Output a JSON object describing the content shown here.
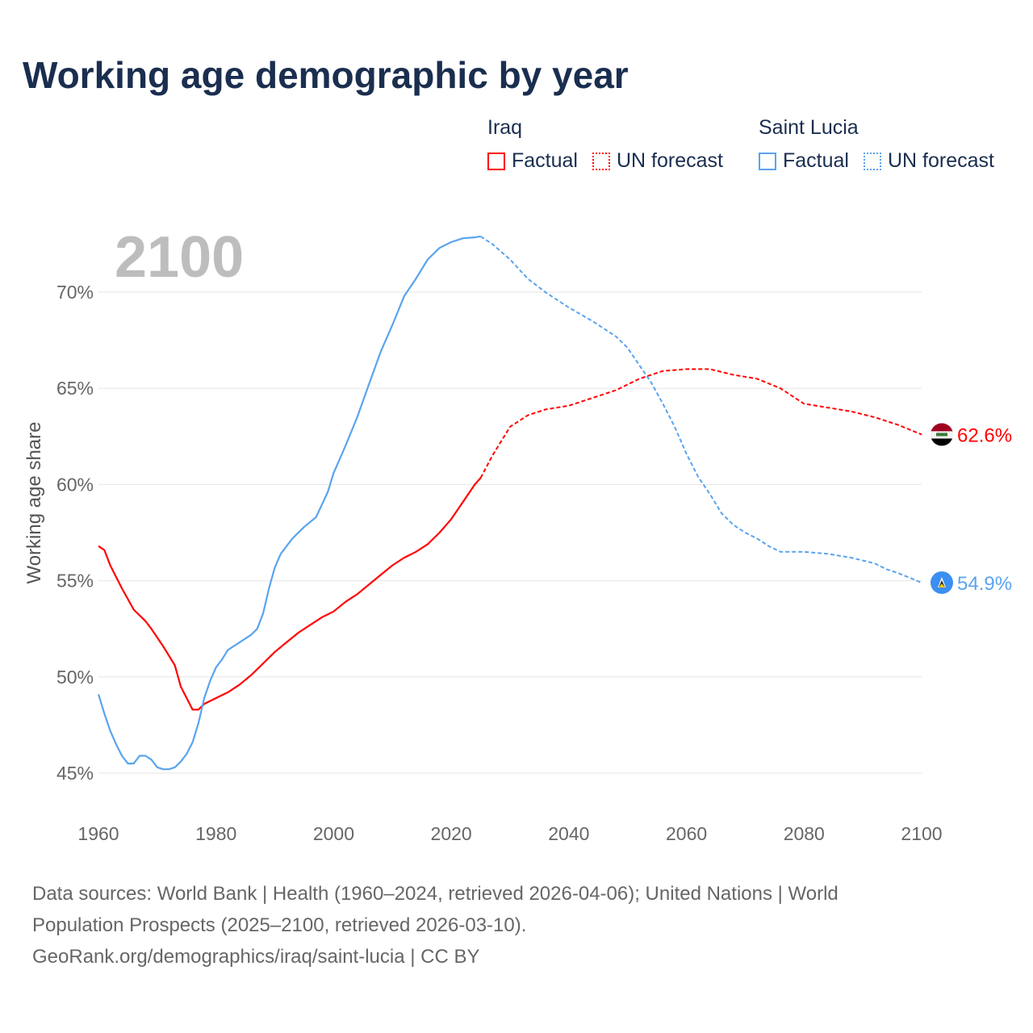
{
  "title": "Working age demographic by year",
  "legend": [
    {
      "country": "Iraq",
      "factual": "Factual",
      "forecast": "UN forecast",
      "color": "#ff0000"
    },
    {
      "country": "Saint Lucia",
      "factual": "Factual",
      "forecast": "UN forecast",
      "color": "#5aa4ee"
    }
  ],
  "year_watermark": "2100",
  "footer": {
    "line1": "Data sources: World Bank | Health (1960–2024, retrieved 2026-04-06); United Nations | World",
    "line2": "Population Prospects (2025–2100, retrieved 2026-03-10).",
    "line3": "GeoRank.org/demographics/iraq/saint-lucia | CC BY"
  },
  "chart_data": {
    "type": "line",
    "title": "Working age demographic by year",
    "xlabel": "",
    "ylabel": "Working age share",
    "xlim": [
      1960,
      2100
    ],
    "ylim": [
      45,
      72.9
    ],
    "xticks": [
      1960,
      1980,
      2000,
      2020,
      2040,
      2060,
      2080,
      2100
    ],
    "yticks": [
      45,
      50,
      55,
      60,
      65,
      70
    ],
    "ytick_labels": [
      "45%",
      "50%",
      "55%",
      "60%",
      "65%",
      "70%"
    ],
    "xtick_labels": [
      "1960",
      "1980",
      "2000",
      "2020",
      "2040",
      "2060",
      "2080",
      "2100"
    ],
    "grid": true,
    "series": [
      {
        "name": "Iraq",
        "color": "#ff0000",
        "end_label": "62.6%",
        "factual": {
          "x": [
            1960,
            1961,
            1962,
            1964,
            1966,
            1968,
            1969,
            1971,
            1973,
            1974,
            1975,
            1976,
            1977,
            1978,
            1980,
            1982,
            1984,
            1986,
            1988,
            1990,
            1992,
            1994,
            1996,
            1998,
            2000,
            2002,
            2004,
            2006,
            2008,
            2010,
            2012,
            2014,
            2016,
            2018,
            2020,
            2022,
            2024,
            2025
          ],
          "y": [
            56.8,
            56.6,
            55.8,
            54.6,
            53.5,
            52.9,
            52.5,
            51.6,
            50.6,
            49.5,
            48.9,
            48.3,
            48.3,
            48.6,
            48.9,
            49.2,
            49.6,
            50.1,
            50.7,
            51.3,
            51.8,
            52.3,
            52.7,
            53.1,
            53.4,
            53.9,
            54.3,
            54.8,
            55.3,
            55.8,
            56.2,
            56.5,
            56.9,
            57.5,
            58.2,
            59.1,
            60.0,
            60.35
          ]
        },
        "forecast": {
          "x": [
            2025,
            2027,
            2030,
            2033,
            2036,
            2040,
            2044,
            2048,
            2052,
            2056,
            2060,
            2064,
            2068,
            2072,
            2076,
            2080,
            2084,
            2088,
            2092,
            2096,
            2100
          ],
          "y": [
            60.35,
            61.5,
            63.0,
            63.6,
            63.9,
            64.1,
            64.5,
            64.9,
            65.5,
            65.9,
            66.0,
            66.0,
            65.7,
            65.5,
            65.0,
            64.2,
            64.0,
            63.8,
            63.5,
            63.1,
            62.6
          ]
        }
      },
      {
        "name": "Saint Lucia",
        "color": "#5aa4ee",
        "end_label": "54.9%",
        "factual": {
          "x": [
            1960,
            1961,
            1962,
            1963,
            1964,
            1965,
            1966,
            1967,
            1968,
            1969,
            1970,
            1971,
            1972,
            1973,
            1974,
            1975,
            1976,
            1977,
            1978,
            1979,
            1980,
            1981,
            1982,
            1984,
            1986,
            1987,
            1988,
            1989,
            1990,
            1991,
            1993,
            1995,
            1997,
            1999,
            2000,
            2002,
            2004,
            2006,
            2008,
            2010,
            2012,
            2014,
            2016,
            2018,
            2020,
            2022,
            2024,
            2025
          ],
          "y": [
            49.1,
            48.1,
            47.2,
            46.5,
            45.9,
            45.5,
            45.5,
            45.9,
            45.9,
            45.7,
            45.3,
            45.2,
            45.2,
            45.3,
            45.6,
            46.0,
            46.6,
            47.6,
            48.9,
            49.8,
            50.5,
            50.9,
            51.4,
            51.8,
            52.2,
            52.5,
            53.3,
            54.6,
            55.7,
            56.4,
            57.2,
            57.8,
            58.3,
            59.6,
            60.6,
            62.0,
            63.5,
            65.2,
            66.9,
            68.3,
            69.8,
            70.7,
            71.7,
            72.3,
            72.6,
            72.8,
            72.85,
            72.9
          ]
        },
        "forecast": {
          "x": [
            2025,
            2027,
            2030,
            2033,
            2036,
            2040,
            2044,
            2048,
            2050,
            2052,
            2054,
            2056,
            2058,
            2060,
            2062,
            2064,
            2066,
            2068,
            2070,
            2072,
            2074,
            2076,
            2080,
            2084,
            2088,
            2092,
            2094,
            2096,
            2100
          ],
          "y": [
            72.9,
            72.5,
            71.7,
            70.7,
            70.0,
            69.2,
            68.5,
            67.7,
            67.1,
            66.2,
            65.3,
            64.2,
            63.0,
            61.6,
            60.4,
            59.5,
            58.5,
            57.9,
            57.5,
            57.2,
            56.8,
            56.5,
            56.5,
            56.4,
            56.2,
            55.9,
            55.6,
            55.4,
            54.9
          ]
        }
      }
    ]
  }
}
